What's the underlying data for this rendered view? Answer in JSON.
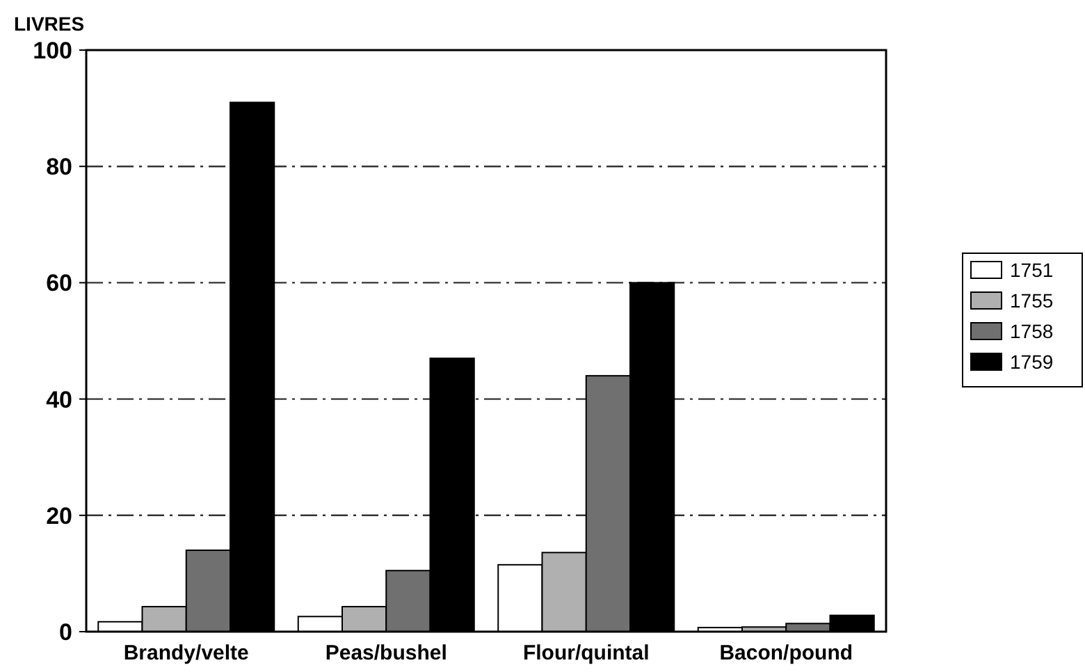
{
  "chart_data": {
    "type": "bar",
    "ylabel": "LIVRES",
    "categories": [
      "Brandy/velte",
      "Peas/bushel",
      "Flour/quintal",
      "Bacon/pound"
    ],
    "series": [
      {
        "name": "1751",
        "color": "#ffffff",
        "values": [
          1.7,
          2.6,
          11.5,
          0.7
        ]
      },
      {
        "name": "1755",
        "color": "#b0b0b0",
        "values": [
          4.3,
          4.3,
          13.6,
          0.8
        ]
      },
      {
        "name": "1758",
        "color": "#707070",
        "values": [
          14,
          10.5,
          44,
          1.4
        ]
      },
      {
        "name": "1759",
        "color": "#000000",
        "values": [
          91,
          47,
          60,
          2.8
        ]
      }
    ],
    "ylim": [
      0,
      100
    ],
    "yticks": [
      0,
      20,
      40,
      60,
      80,
      100
    ],
    "grid": "y",
    "legend": "right"
  }
}
